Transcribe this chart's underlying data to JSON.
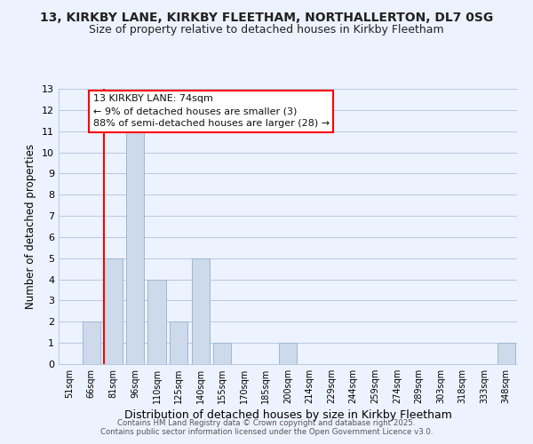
{
  "title1": "13, KIRKBY LANE, KIRKBY FLEETHAM, NORTHALLERTON, DL7 0SG",
  "title2": "Size of property relative to detached houses in Kirkby Fleetham",
  "xlabel": "Distribution of detached houses by size in Kirkby Fleetham",
  "ylabel": "Number of detached properties",
  "bins": [
    "51sqm",
    "66sqm",
    "81sqm",
    "96sqm",
    "110sqm",
    "125sqm",
    "140sqm",
    "155sqm",
    "170sqm",
    "185sqm",
    "200sqm",
    "214sqm",
    "229sqm",
    "244sqm",
    "259sqm",
    "274sqm",
    "289sqm",
    "303sqm",
    "318sqm",
    "333sqm",
    "348sqm"
  ],
  "values": [
    0,
    2,
    5,
    11,
    4,
    2,
    5,
    1,
    0,
    0,
    1,
    0,
    0,
    0,
    0,
    0,
    0,
    0,
    0,
    0,
    1
  ],
  "bar_color": "#ccdaeb",
  "bar_edge_color": "#9fb8d4",
  "red_line_x": 1.575,
  "annotation_line1": "13 KIRKBY LANE: 74sqm",
  "annotation_line2": "← 9% of detached houses are smaller (3)",
  "annotation_line3": "88% of semi-detached houses are larger (28) →",
  "ylim": [
    0,
    13
  ],
  "yticks": [
    0,
    1,
    2,
    3,
    4,
    5,
    6,
    7,
    8,
    9,
    10,
    11,
    12,
    13
  ],
  "footer1": "Contains HM Land Registry data © Crown copyright and database right 2025.",
  "footer2": "Contains public sector information licensed under the Open Government Licence v3.0.",
  "background_color": "#edf2ff",
  "grid_color": "#b8c8e0",
  "title_fontsize": 10,
  "subtitle_fontsize": 9
}
